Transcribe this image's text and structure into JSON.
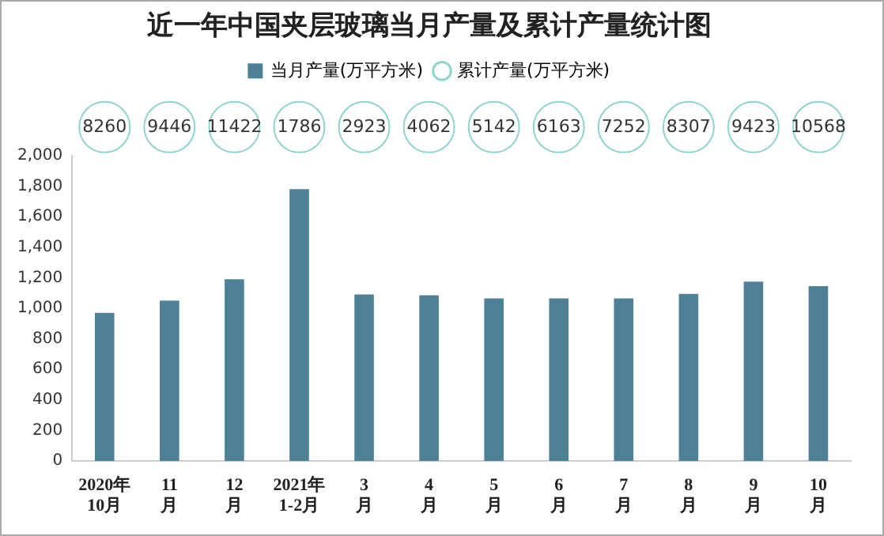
{
  "chart_data": {
    "type": "bar",
    "title": "近一年中国夹层玻璃当月产量及累计产量统计图",
    "categories": [
      "2020年\n10月",
      "11\n月",
      "12\n月",
      "2021年\n1-2月",
      "3\n月",
      "4\n月",
      "5\n月",
      "6\n月",
      "7\n月",
      "8\n月",
      "9\n月",
      "10\n月"
    ],
    "series": [
      {
        "name": "当月产量(万平方米)",
        "color": "#4e8197",
        "values": [
          970,
          1050,
          1190,
          1780,
          1090,
          1085,
          1065,
          1065,
          1065,
          1095,
          1175,
          1145
        ]
      },
      {
        "name": "累计产量(万平方米)",
        "type": "scatter",
        "color": "#8fd3cf",
        "values": [
          null,
          null,
          null,
          null,
          null,
          null,
          null,
          null,
          null,
          null,
          null,
          null
        ]
      }
    ],
    "annotations": [
      {
        "text": "8260",
        "x": "2020年\n10月"
      },
      {
        "text": "9446",
        "x": "11\n月"
      },
      {
        "text": "11422",
        "x": "12\n月"
      },
      {
        "text": "1786",
        "x": "2021年\n1-2月"
      },
      {
        "text": "2923",
        "x": "3\n月"
      },
      {
        "text": "4062",
        "x": "4\n月"
      },
      {
        "text": "5142",
        "x": "5\n月"
      },
      {
        "text": "6163",
        "x": "6\n月"
      },
      {
        "text": "7252",
        "x": "7\n月"
      },
      {
        "text": "8307",
        "x": "8\n月"
      },
      {
        "text": "9423",
        "x": "9\n月"
      },
      {
        "text": "10568",
        "x": "10\n月"
      }
    ],
    "ylim": [
      0,
      2000
    ],
    "yticks": [
      0,
      200,
      400,
      600,
      800,
      {
        "value": 1000,
        "label": "1,000"
      },
      {
        "value": 1200,
        "label": "1,200"
      },
      {
        "value": 1400,
        "label": "1,400"
      },
      {
        "value": 1600,
        "label": "1,600"
      },
      {
        "value": 1800,
        "label": "1,800"
      },
      {
        "value": 2000,
        "label": "2,000"
      }
    ],
    "grid": false,
    "legend": "top"
  }
}
